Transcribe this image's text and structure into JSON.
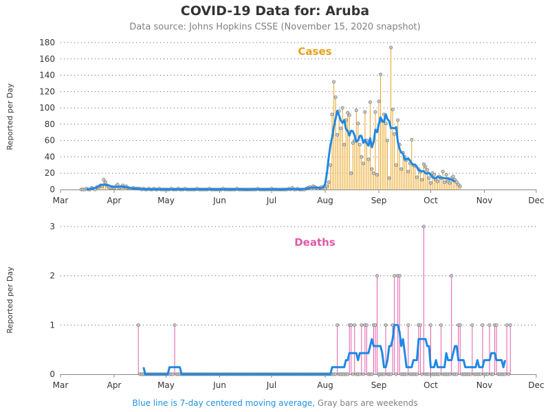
{
  "title": "COVID-19 Data for: Aruba",
  "subtitle": "Data source: Johns Hopkins CSSE (November 15, 2020 snapshot)",
  "footnote": {
    "blue_part": "Blue line is 7-day centered moving average,",
    "gray_part": " Gray bars are weekends"
  },
  "colors": {
    "cases": "#e8a21a",
    "deaths": "#e05aaa",
    "moving_average": "#1f88e5",
    "marker_fill": "#c8c8c8",
    "gridline": "#555555"
  },
  "chart_data": [
    {
      "type": "bar",
      "panel_label": "Cases",
      "ylabel": "Reported per Day",
      "ylim": [
        0,
        180
      ],
      "yticks": [
        0,
        20,
        40,
        60,
        80,
        100,
        120,
        140,
        160,
        180
      ],
      "x_axis": {
        "start": "2020-03-01",
        "end": "2020-12-01",
        "tick_labels": [
          "Mar",
          "Apr",
          "May",
          "Jun",
          "Jul",
          "Aug",
          "Sep",
          "Oct",
          "Nov",
          "Dec"
        ]
      },
      "grid": "horizontal dotted",
      "series": [
        {
          "first_date": "2020-03-13",
          "daily_values": [
            0,
            0,
            0,
            1,
            0,
            0,
            2,
            1,
            0,
            3,
            3,
            5,
            4,
            12,
            9,
            5,
            3,
            2,
            3,
            2,
            4,
            6,
            2,
            3,
            5,
            3,
            4,
            2,
            1,
            1,
            2,
            1,
            1,
            1,
            1,
            0,
            1,
            0,
            0,
            1,
            0,
            0,
            1,
            0,
            0,
            1,
            0,
            0,
            0,
            0,
            0,
            0,
            1,
            0,
            0,
            0,
            1,
            0,
            0,
            0,
            1,
            0,
            0,
            0,
            0,
            0,
            0,
            1,
            0,
            0,
            0,
            0,
            0,
            0,
            1,
            0,
            0,
            0,
            0,
            0,
            0,
            0,
            1,
            0,
            0,
            0,
            0,
            0,
            0,
            0,
            1,
            0,
            0,
            0,
            0,
            0,
            0,
            0,
            0,
            0,
            0,
            0,
            1,
            0,
            0,
            0,
            0,
            0,
            0,
            0,
            1,
            0,
            0,
            0,
            0,
            0,
            0,
            0,
            0,
            0,
            1,
            0,
            2,
            0,
            0,
            1,
            0,
            0,
            0,
            0,
            1,
            2,
            3,
            1,
            4,
            3,
            2,
            1,
            2,
            3,
            1,
            1,
            4,
            9,
            30,
            92,
            132,
            113,
            67,
            96,
            75,
            100,
            55,
            85,
            94,
            91,
            20,
            57,
            60,
            97,
            81,
            55,
            40,
            32,
            95,
            60,
            37,
            107,
            25,
            20,
            95,
            18,
            108,
            141,
            84,
            92,
            81,
            60,
            14,
            174,
            98,
            68,
            30,
            85,
            55,
            25,
            45,
            40,
            36,
            22,
            32,
            61,
            30,
            29,
            15,
            25,
            22,
            12,
            31,
            28,
            24,
            14,
            8,
            20,
            18,
            12,
            10,
            16,
            14,
            22,
            9,
            18,
            10,
            8,
            14,
            16,
            12,
            9,
            6,
            4
          ]
        }
      ],
      "moving_average": "7-day centered"
    },
    {
      "type": "bar",
      "panel_label": "Deaths",
      "ylabel": "Reported per Day",
      "ylim": [
        0,
        3
      ],
      "yticks": [
        0,
        1,
        2,
        3
      ],
      "x_axis": {
        "start": "2020-03-01",
        "end": "2020-12-01",
        "tick_labels": [
          "Mar",
          "Apr",
          "May",
          "Jun",
          "Jul",
          "Aug",
          "Sep",
          "Oct",
          "Nov",
          "Dec"
        ]
      },
      "grid": "horizontal dotted",
      "series": [
        {
          "first_date": "2020-04-15",
          "daily_values": [
            1,
            0,
            0,
            0,
            0,
            0,
            0,
            0,
            0,
            0,
            0,
            0,
            0,
            0,
            0,
            0,
            0,
            0,
            0,
            0,
            0,
            1,
            0,
            0,
            0,
            0,
            0,
            0,
            0,
            0,
            0,
            0,
            0,
            0,
            0,
            0,
            0,
            0,
            0,
            0,
            0,
            0,
            0,
            0,
            0,
            0,
            0,
            0,
            0,
            0,
            0,
            0,
            0,
            0,
            0,
            0,
            0,
            0,
            0,
            0,
            0,
            0,
            0,
            0,
            0,
            0,
            0,
            0,
            0,
            0,
            0,
            0,
            0,
            0,
            0,
            0,
            0,
            0,
            0,
            0,
            0,
            0,
            0,
            0,
            0,
            0,
            0,
            0,
            0,
            0,
            0,
            0,
            0,
            0,
            0,
            0,
            0,
            0,
            0,
            0,
            0,
            0,
            0,
            0,
            0,
            0,
            0,
            0,
            0,
            0,
            0,
            0,
            0,
            0,
            0,
            1,
            0,
            0,
            0,
            0,
            0,
            0,
            1,
            1,
            0,
            1,
            0,
            0,
            0,
            1,
            0,
            1,
            1,
            0,
            0,
            0,
            1,
            1,
            2,
            0,
            0,
            0,
            0,
            1,
            0,
            0,
            0,
            1,
            2,
            0,
            2,
            2,
            0,
            0,
            0,
            0,
            1,
            0,
            0,
            0,
            0,
            0,
            1,
            1,
            0,
            3,
            0,
            0,
            0,
            1,
            0,
            0,
            0,
            0,
            0,
            1,
            0,
            0,
            0,
            0,
            0,
            2,
            0,
            0,
            0,
            1,
            1,
            0,
            0,
            0,
            0,
            0,
            0,
            1,
            0,
            0,
            0,
            0,
            0,
            1,
            0,
            0,
            0,
            1,
            0,
            0,
            1,
            1,
            0,
            0,
            0,
            0,
            0,
            1,
            0,
            1
          ]
        }
      ],
      "moving_average": "7-day centered"
    }
  ]
}
